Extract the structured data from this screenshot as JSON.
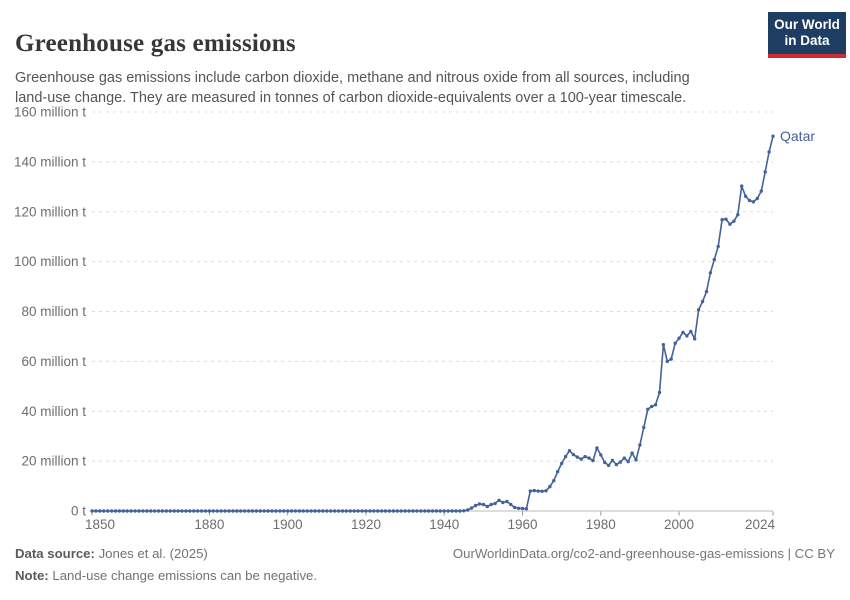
{
  "header": {
    "title": "Greenhouse gas emissions",
    "subtitle": "Greenhouse gas emissions include carbon dioxide, methane and nitrous oxide from all sources, including land-use change. They are measured in tonnes of carbon dioxide-equivalents over a 100-year timescale.",
    "logo": {
      "line1": "Our World",
      "line2": "in Data"
    }
  },
  "footer": {
    "datasource_label": "Data source:",
    "datasource_value": "Jones et al. (2025)",
    "note_label": "Note:",
    "note_value": "Land-use change emissions can be negative.",
    "citation": "OurWorldinData.org/co2-and-greenhouse-gas-emissions | CC BY"
  },
  "colors": {
    "line": "#44619b",
    "entity_label": "#44619b",
    "grid": "#dcdcdc",
    "axis": "#bbbbbb",
    "tick": "#999999",
    "tick_text": "#6e6e6e",
    "logo_bg": "#1d3d63",
    "logo_red": "#cf2d34"
  },
  "chart_data": {
    "type": "line",
    "title": "Greenhouse gas emissions",
    "ylabel_unit": "million t",
    "xlim": [
      1850,
      2024
    ],
    "ylim": [
      0,
      160
    ],
    "grid": true,
    "legend_position": "end-of-line-label",
    "xticks": [
      1850,
      1880,
      1900,
      1920,
      1940,
      1960,
      1980,
      2000,
      2024
    ],
    "yticks": [
      {
        "v": 0,
        "label": "0 t"
      },
      {
        "v": 20,
        "label": "20 million t"
      },
      {
        "v": 40,
        "label": "40 million t"
      },
      {
        "v": 60,
        "label": "60 million t"
      },
      {
        "v": 80,
        "label": "80 million t"
      },
      {
        "v": 100,
        "label": "100 million t"
      },
      {
        "v": 120,
        "label": "120 million t"
      },
      {
        "v": 140,
        "label": "140 million t"
      },
      {
        "v": 160,
        "label": "160 million t"
      }
    ],
    "series": [
      {
        "name": "Qatar",
        "unit": "million tonnes CO2-eq",
        "points": [
          [
            1850,
            0
          ],
          [
            1851,
            0
          ],
          [
            1852,
            0
          ],
          [
            1853,
            0
          ],
          [
            1854,
            0
          ],
          [
            1855,
            0
          ],
          [
            1856,
            0
          ],
          [
            1857,
            0
          ],
          [
            1858,
            0
          ],
          [
            1859,
            0
          ],
          [
            1860,
            0
          ],
          [
            1861,
            0
          ],
          [
            1862,
            0
          ],
          [
            1863,
            0
          ],
          [
            1864,
            0
          ],
          [
            1865,
            0
          ],
          [
            1866,
            0
          ],
          [
            1867,
            0
          ],
          [
            1868,
            0
          ],
          [
            1869,
            0
          ],
          [
            1870,
            0
          ],
          [
            1871,
            0
          ],
          [
            1872,
            0
          ],
          [
            1873,
            0
          ],
          [
            1874,
            0
          ],
          [
            1875,
            0
          ],
          [
            1876,
            0
          ],
          [
            1877,
            0
          ],
          [
            1878,
            0
          ],
          [
            1879,
            0
          ],
          [
            1880,
            0
          ],
          [
            1881,
            0
          ],
          [
            1882,
            0
          ],
          [
            1883,
            0
          ],
          [
            1884,
            0
          ],
          [
            1885,
            0
          ],
          [
            1886,
            0
          ],
          [
            1887,
            0
          ],
          [
            1888,
            0
          ],
          [
            1889,
            0
          ],
          [
            1890,
            0
          ],
          [
            1891,
            0
          ],
          [
            1892,
            0
          ],
          [
            1893,
            0
          ],
          [
            1894,
            0
          ],
          [
            1895,
            0
          ],
          [
            1896,
            0
          ],
          [
            1897,
            0
          ],
          [
            1898,
            0
          ],
          [
            1899,
            0
          ],
          [
            1900,
            0
          ],
          [
            1901,
            0
          ],
          [
            1902,
            0
          ],
          [
            1903,
            0
          ],
          [
            1904,
            0
          ],
          [
            1905,
            0
          ],
          [
            1906,
            0
          ],
          [
            1907,
            0
          ],
          [
            1908,
            0
          ],
          [
            1909,
            0
          ],
          [
            1910,
            0
          ],
          [
            1911,
            0
          ],
          [
            1912,
            0
          ],
          [
            1913,
            0
          ],
          [
            1914,
            0
          ],
          [
            1915,
            0
          ],
          [
            1916,
            0
          ],
          [
            1917,
            0
          ],
          [
            1918,
            0
          ],
          [
            1919,
            0
          ],
          [
            1920,
            0
          ],
          [
            1921,
            0
          ],
          [
            1922,
            0
          ],
          [
            1923,
            0
          ],
          [
            1924,
            0
          ],
          [
            1925,
            0
          ],
          [
            1926,
            0
          ],
          [
            1927,
            0
          ],
          [
            1928,
            0
          ],
          [
            1929,
            0
          ],
          [
            1930,
            0
          ],
          [
            1931,
            0
          ],
          [
            1932,
            0
          ],
          [
            1933,
            0
          ],
          [
            1934,
            0
          ],
          [
            1935,
            0
          ],
          [
            1936,
            0
          ],
          [
            1937,
            0
          ],
          [
            1938,
            0
          ],
          [
            1939,
            0
          ],
          [
            1940,
            0
          ],
          [
            1941,
            0
          ],
          [
            1942,
            0
          ],
          [
            1943,
            0
          ],
          [
            1944,
            0
          ],
          [
            1945,
            0.1
          ],
          [
            1946,
            0.4
          ],
          [
            1947,
            1.2
          ],
          [
            1948,
            2.2
          ],
          [
            1949,
            2.8
          ],
          [
            1950,
            2.6
          ],
          [
            1951,
            1.8
          ],
          [
            1952,
            2.6
          ],
          [
            1953,
            3.0
          ],
          [
            1954,
            4.3
          ],
          [
            1955,
            3.4
          ],
          [
            1956,
            3.8
          ],
          [
            1957,
            2.6
          ],
          [
            1958,
            1.4
          ],
          [
            1959,
            1.1
          ],
          [
            1960,
            1.0
          ],
          [
            1961,
            0.9
          ],
          [
            1962,
            8.0
          ],
          [
            1963,
            8.2
          ],
          [
            1964,
            8.0
          ],
          [
            1965,
            7.9
          ],
          [
            1966,
            8.1
          ],
          [
            1967,
            9.8
          ],
          [
            1968,
            12.2
          ],
          [
            1969,
            15.8
          ],
          [
            1970,
            19.1
          ],
          [
            1971,
            21.8
          ],
          [
            1972,
            24.2
          ],
          [
            1973,
            22.6
          ],
          [
            1974,
            21.6
          ],
          [
            1975,
            20.8
          ],
          [
            1976,
            21.8
          ],
          [
            1977,
            21.2
          ],
          [
            1978,
            20.2
          ],
          [
            1979,
            25.3
          ],
          [
            1980,
            22.5
          ],
          [
            1981,
            19.5
          ],
          [
            1982,
            18.3
          ],
          [
            1983,
            20.3
          ],
          [
            1984,
            18.6
          ],
          [
            1985,
            19.6
          ],
          [
            1986,
            21.2
          ],
          [
            1987,
            19.8
          ],
          [
            1988,
            23.2
          ],
          [
            1989,
            20.5
          ],
          [
            1990,
            26.5
          ],
          [
            1991,
            33.5
          ],
          [
            1992,
            40.8
          ],
          [
            1993,
            41.9
          ],
          [
            1994,
            42.6
          ],
          [
            1995,
            47.5
          ],
          [
            1996,
            66.7
          ],
          [
            1997,
            60.0
          ],
          [
            1998,
            60.9
          ],
          [
            1999,
            67.3
          ],
          [
            2000,
            69.3
          ],
          [
            2001,
            71.6
          ],
          [
            2002,
            70.2
          ],
          [
            2003,
            72.0
          ],
          [
            2004,
            69.0
          ],
          [
            2005,
            80.7
          ],
          [
            2006,
            84.0
          ],
          [
            2007,
            88.0
          ],
          [
            2008,
            95.5
          ],
          [
            2009,
            100.8
          ],
          [
            2010,
            106.1
          ],
          [
            2011,
            116.8
          ],
          [
            2012,
            117.0
          ],
          [
            2013,
            115.0
          ],
          [
            2014,
            116.2
          ],
          [
            2015,
            118.8
          ],
          [
            2016,
            130.3
          ],
          [
            2017,
            126.2
          ],
          [
            2018,
            124.5
          ],
          [
            2019,
            124.0
          ],
          [
            2020,
            125.3
          ],
          [
            2021,
            128.3
          ],
          [
            2022,
            136.0
          ],
          [
            2023,
            144.0
          ],
          [
            2024,
            150.3
          ]
        ]
      }
    ]
  }
}
